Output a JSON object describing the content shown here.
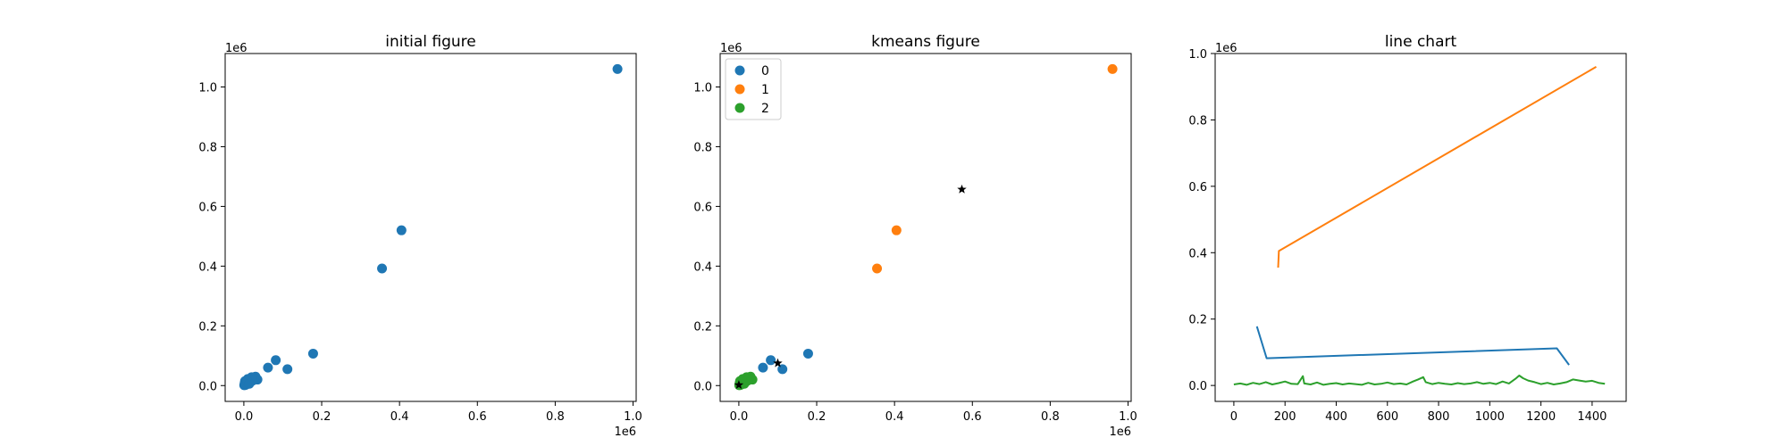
{
  "figure": {
    "panels": [
      {
        "title": "initial figure"
      },
      {
        "title": "kmeans figure"
      },
      {
        "title": "line chart"
      }
    ]
  },
  "chart_data": [
    {
      "type": "scatter",
      "title": "initial figure",
      "xlabel": "",
      "ylabel": "",
      "xlim": [
        -0.048,
        1.008
      ],
      "ylim": [
        -0.053,
        1.112
      ],
      "x_offset_label": "1e6",
      "y_offset_label": "1e6",
      "x_ticks": [
        0.0,
        0.2,
        0.4,
        0.6,
        0.8,
        1.0
      ],
      "x_tick_labels": [
        "0.0",
        "0.2",
        "0.4",
        "0.6",
        "0.8",
        "1.0"
      ],
      "y_ticks": [
        0.0,
        0.2,
        0.4,
        0.6,
        0.8,
        1.0
      ],
      "y_tick_labels": [
        "0.0",
        "0.2",
        "0.4",
        "0.6",
        "0.8",
        "1.0"
      ],
      "grid": false,
      "point_color": "#1f77b4",
      "x": [
        0.96,
        0.405,
        0.355,
        0.178,
        0.112,
        0.082,
        0.062,
        0.035,
        0.03,
        0.025,
        0.02,
        0.015,
        0.012,
        0.01,
        0.008,
        0.006,
        0.004,
        0.003,
        0.002,
        0.001,
        0.018,
        0.022,
        0.009,
        0.014
      ],
      "y": [
        1.06,
        0.52,
        0.392,
        0.107,
        0.055,
        0.085,
        0.06,
        0.02,
        0.03,
        0.025,
        0.028,
        0.012,
        0.018,
        0.022,
        0.005,
        0.01,
        0.002,
        0.015,
        0.008,
        0.001,
        0.02,
        0.016,
        0.014,
        0.006
      ]
    },
    {
      "type": "scatter",
      "title": "kmeans figure",
      "xlabel": "",
      "ylabel": "",
      "xlim": [
        -0.048,
        1.008
      ],
      "ylim": [
        -0.053,
        1.112
      ],
      "x_offset_label": "1e6",
      "y_offset_label": "1e6",
      "x_ticks": [
        0.0,
        0.2,
        0.4,
        0.6,
        0.8,
        1.0
      ],
      "x_tick_labels": [
        "0.0",
        "0.2",
        "0.4",
        "0.6",
        "0.8",
        "1.0"
      ],
      "y_ticks": [
        0.0,
        0.2,
        0.4,
        0.6,
        0.8,
        1.0
      ],
      "y_tick_labels": [
        "0.0",
        "0.2",
        "0.4",
        "0.6",
        "0.8",
        "1.0"
      ],
      "grid": false,
      "legend_position": "top-left",
      "series": [
        {
          "name": "0",
          "color": "#1f77b4",
          "x": [
            0.178,
            0.112,
            0.082,
            0.062
          ],
          "y": [
            0.107,
            0.055,
            0.085,
            0.06
          ]
        },
        {
          "name": "1",
          "color": "#ff7f0e",
          "x": [
            0.96,
            0.405,
            0.355
          ],
          "y": [
            1.06,
            0.52,
            0.392
          ]
        },
        {
          "name": "2",
          "color": "#2ca02c",
          "x": [
            0.035,
            0.03,
            0.025,
            0.02,
            0.015,
            0.012,
            0.01,
            0.008,
            0.006,
            0.004,
            0.003,
            0.002,
            0.001,
            0.018,
            0.022,
            0.009,
            0.014
          ],
          "y": [
            0.02,
            0.03,
            0.025,
            0.028,
            0.012,
            0.018,
            0.022,
            0.005,
            0.01,
            0.002,
            0.015,
            0.008,
            0.001,
            0.02,
            0.016,
            0.014,
            0.006
          ]
        }
      ],
      "centroids": {
        "color": "#000000",
        "marker": "star",
        "x": [
          0.573,
          0.1,
          0.0
        ],
        "y": [
          0.657,
          0.075,
          0.002
        ]
      }
    },
    {
      "type": "line",
      "title": "line chart",
      "xlabel": "",
      "ylabel": "",
      "xlim": [
        -73,
        1533
      ],
      "ylim": [
        -0.048,
        1.0
      ],
      "y_offset_label": "1e6",
      "x_ticks": [
        0,
        200,
        400,
        600,
        800,
        1000,
        1200,
        1400
      ],
      "x_tick_labels": [
        "0",
        "200",
        "400",
        "600",
        "800",
        "1000",
        "1200",
        "1400"
      ],
      "y_ticks": [
        0.0,
        0.2,
        0.4,
        0.6,
        0.8,
        1.0
      ],
      "y_tick_labels": [
        "0.0",
        "0.2",
        "0.4",
        "0.6",
        "0.8",
        "1.0"
      ],
      "grid": false,
      "series": [
        {
          "color": "#1f77b4",
          "x": [
            90,
            128,
            1262,
            1310
          ],
          "y": [
            0.178,
            0.082,
            0.112,
            0.062
          ]
        },
        {
          "color": "#ff7f0e",
          "x": [
            173,
            176,
            1416
          ],
          "y": [
            0.355,
            0.405,
            0.96
          ]
        },
        {
          "color": "#2ca02c",
          "x": [
            0,
            25,
            50,
            75,
            100,
            125,
            150,
            175,
            200,
            225,
            250,
            270,
            275,
            300,
            325,
            350,
            375,
            400,
            425,
            450,
            475,
            500,
            525,
            550,
            575,
            600,
            625,
            650,
            675,
            700,
            720,
            740,
            750,
            775,
            800,
            825,
            850,
            875,
            900,
            925,
            950,
            975,
            1000,
            1025,
            1050,
            1075,
            1100,
            1115,
            1130,
            1150,
            1175,
            1200,
            1225,
            1250,
            1275,
            1300,
            1325,
            1350,
            1375,
            1400,
            1425,
            1450
          ],
          "y": [
            0.003,
            0.006,
            0.002,
            0.008,
            0.004,
            0.01,
            0.003,
            0.007,
            0.012,
            0.005,
            0.004,
            0.028,
            0.006,
            0.003,
            0.009,
            0.002,
            0.005,
            0.007,
            0.003,
            0.006,
            0.004,
            0.002,
            0.008,
            0.003,
            0.005,
            0.009,
            0.004,
            0.006,
            0.003,
            0.012,
            0.018,
            0.025,
            0.01,
            0.004,
            0.008,
            0.005,
            0.003,
            0.007,
            0.004,
            0.006,
            0.01,
            0.005,
            0.008,
            0.004,
            0.012,
            0.006,
            0.02,
            0.03,
            0.022,
            0.015,
            0.01,
            0.004,
            0.008,
            0.003,
            0.006,
            0.01,
            0.018,
            0.015,
            0.012,
            0.014,
            0.008,
            0.005
          ]
        }
      ]
    }
  ]
}
